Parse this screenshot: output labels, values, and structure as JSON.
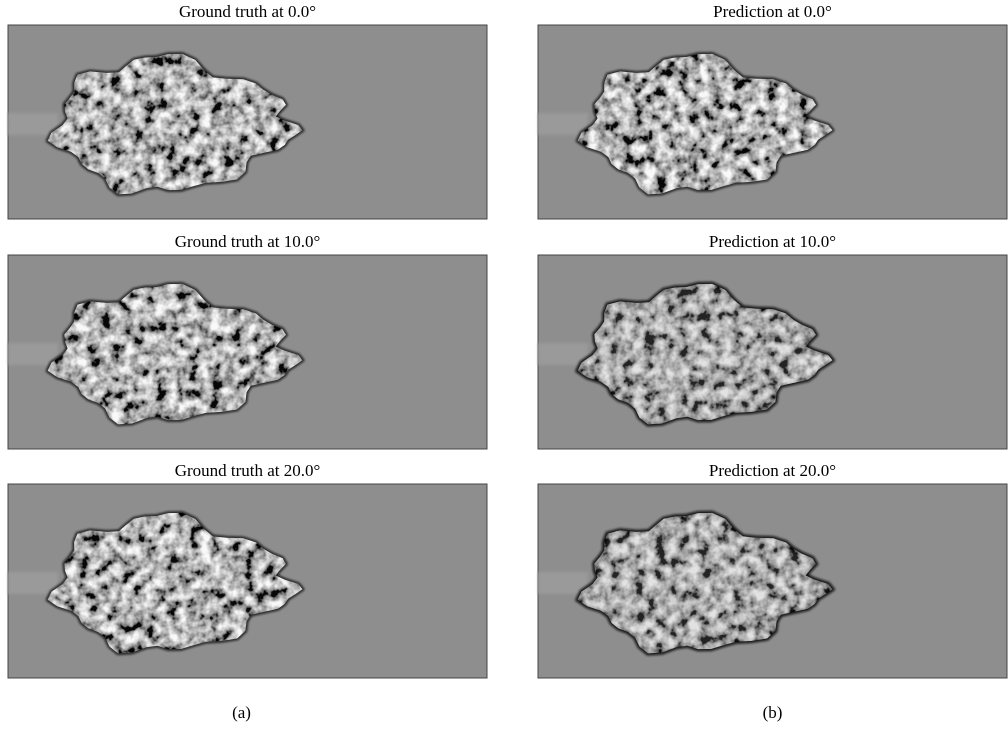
{
  "columns": [
    {
      "panels": [
        {
          "title": "Ground truth at 0.0°"
        },
        {
          "title": "Ground truth at 10.0°"
        },
        {
          "title": "Ground truth at 20.0°"
        }
      ],
      "caption": "(a)"
    },
    {
      "panels": [
        {
          "title": "Prediction at 0.0°"
        },
        {
          "title": "Prediction at 10.0°"
        },
        {
          "title": "Prediction at 20.0°"
        }
      ],
      "caption": "(b)"
    }
  ]
}
